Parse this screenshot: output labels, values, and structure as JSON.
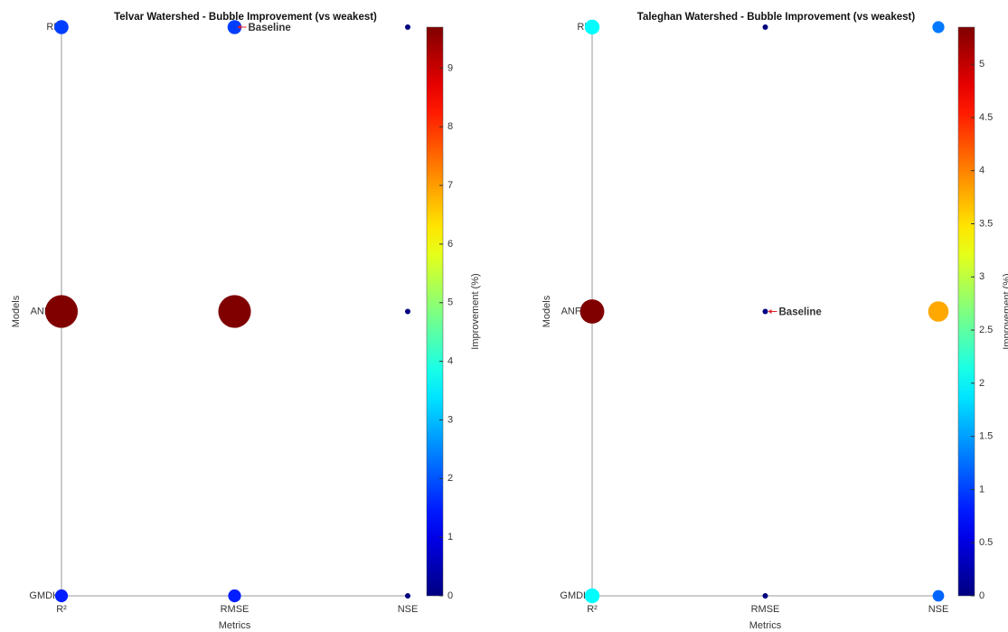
{
  "chart_data": [
    {
      "type": "bubble",
      "title": "Telvar Watershed - Bubble Improvement (vs weakest)",
      "xlabel": "Metrics",
      "ylabel": "Models",
      "x_categories": [
        "R²",
        "RMSE",
        "NSE"
      ],
      "y_categories": [
        "GMDH",
        "ANFIS",
        "RF"
      ],
      "values": [
        [
          1.5,
          1.5,
          0
        ],
        [
          9.7,
          9.7,
          0
        ],
        [
          1.8,
          1.8,
          0
        ]
      ],
      "colormap": "jet",
      "colorbar_label": "Improvement (%)",
      "clim": [
        0,
        9.7
      ],
      "cticks": [
        0,
        1,
        2,
        3,
        4,
        5,
        6,
        7,
        8,
        9
      ],
      "annotation": {
        "label": "Baseline",
        "model": "RF",
        "metric": "RMSE",
        "color": "#e0202a"
      }
    },
    {
      "type": "bubble",
      "title": "Taleghan Watershed - Bubble Improvement (vs weakest)",
      "xlabel": "Metrics",
      "ylabel": "Models",
      "x_categories": [
        "R²",
        "RMSE",
        "NSE"
      ],
      "y_categories": [
        "GMDH",
        "ANFIS",
        "RF"
      ],
      "values": [
        [
          2.0,
          0,
          1.2
        ],
        [
          5.35,
          0,
          3.8
        ],
        [
          2.0,
          0,
          1.3
        ]
      ],
      "colormap": "jet",
      "colorbar_label": "Improvement (%)",
      "clim": [
        0,
        5.35
      ],
      "cticks": [
        0,
        0.5,
        1,
        1.5,
        2,
        2.5,
        3,
        3.5,
        4,
        4.5,
        5
      ],
      "annotation": {
        "label": "Baseline",
        "model": "ANFIS",
        "metric": "RMSE",
        "color": "#e0202a"
      }
    }
  ]
}
